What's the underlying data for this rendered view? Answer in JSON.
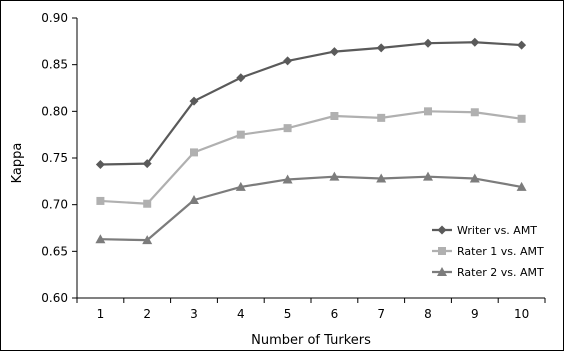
{
  "chart_data": {
    "type": "line",
    "title": "",
    "xlabel": "Number of Turkers",
    "ylabel": "Kappa",
    "x": [
      1,
      2,
      3,
      4,
      5,
      6,
      7,
      8,
      9,
      10
    ],
    "x_tick_labels": [
      "1",
      "2",
      "3",
      "4",
      "5",
      "6",
      "7",
      "8",
      "9",
      "10"
    ],
    "ylim": [
      0.6,
      0.9
    ],
    "y_ticks": [
      0.6,
      0.65,
      0.7,
      0.75,
      0.8,
      0.85,
      0.9
    ],
    "y_tick_labels": [
      "0.60",
      "0.65",
      "0.70",
      "0.75",
      "0.80",
      "0.85",
      "0.90"
    ],
    "grid": false,
    "legend_position": "bottom-right",
    "series": [
      {
        "name": "Writer vs. AMT",
        "marker": "diamond",
        "color": "#5a5a5a",
        "values": [
          0.743,
          0.744,
          0.811,
          0.836,
          0.854,
          0.864,
          0.868,
          0.873,
          0.874,
          0.871
        ]
      },
      {
        "name": "Rater 1 vs. AMT",
        "marker": "square",
        "color": "#b0b0b0",
        "values": [
          0.704,
          0.701,
          0.756,
          0.775,
          0.782,
          0.795,
          0.793,
          0.8,
          0.799,
          0.792
        ]
      },
      {
        "name": "Rater 2 vs. AMT",
        "marker": "triangle",
        "color": "#7c7c7c",
        "values": [
          0.663,
          0.662,
          0.705,
          0.719,
          0.727,
          0.73,
          0.728,
          0.73,
          0.728,
          0.719
        ]
      }
    ]
  }
}
